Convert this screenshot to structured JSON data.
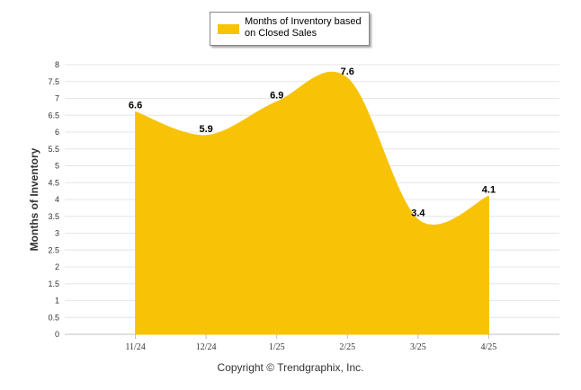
{
  "chart_data": {
    "type": "area",
    "categories": [
      "11/24",
      "12/24",
      "1/25",
      "2/25",
      "3/25",
      "4/25"
    ],
    "series": [
      {
        "name": "Months of Inventory based on Closed Sales",
        "values": [
          6.6,
          5.9,
          6.9,
          7.6,
          3.4,
          4.1
        ],
        "color": "#F8C307"
      }
    ],
    "ylabel": "Months of Inventory",
    "xlabel": "",
    "ylim": [
      0,
      8
    ],
    "yticks": [
      "0",
      "0.5",
      "1",
      "1.5",
      "2",
      "2.5",
      "3",
      "3.5",
      "4",
      "4.5",
      "5",
      "5.5",
      "6",
      "6.5",
      "7",
      "7.5",
      "8"
    ],
    "grid": true,
    "legend": "top-center"
  },
  "legend": {
    "label_line1": "Months of Inventory based",
    "label_line2": "on Closed Sales"
  },
  "footer": {
    "copyright": "Copyright © Trendgraphix, Inc."
  }
}
